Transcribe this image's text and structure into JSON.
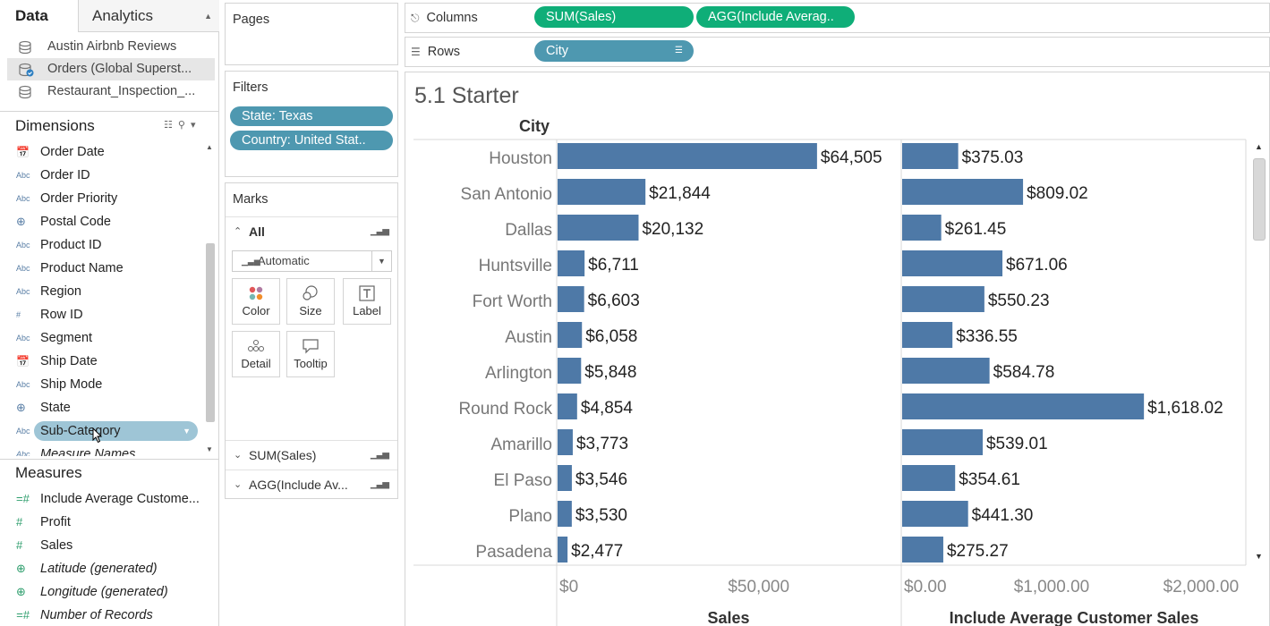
{
  "tabs": {
    "data": "Data",
    "analytics": "Analytics"
  },
  "datasources": [
    {
      "name": "Austin Airbnb Reviews",
      "icon": "datasource-icon"
    },
    {
      "name": "Orders (Global Superst...",
      "icon": "datasource-active-icon"
    },
    {
      "name": "Restaurant_Inspection_...",
      "icon": "datasource-icon"
    }
  ],
  "dimensions": {
    "header": "Dimensions",
    "fields": [
      {
        "name": "Order Date",
        "type": "date"
      },
      {
        "name": "Order ID",
        "type": "Abc"
      },
      {
        "name": "Order Priority",
        "type": "Abc"
      },
      {
        "name": "Postal Code",
        "type": "geo"
      },
      {
        "name": "Product ID",
        "type": "Abc"
      },
      {
        "name": "Product Name",
        "type": "Abc"
      },
      {
        "name": "Region",
        "type": "Abc"
      },
      {
        "name": "Row ID",
        "type": "#"
      },
      {
        "name": "Segment",
        "type": "Abc"
      },
      {
        "name": "Ship Date",
        "type": "date"
      },
      {
        "name": "Ship Mode",
        "type": "Abc"
      },
      {
        "name": "State",
        "type": "geo"
      },
      {
        "name": "Sub-Category",
        "type": "Abc"
      },
      {
        "name": "Measure Names",
        "type": "Abc"
      }
    ]
  },
  "measures": {
    "header": "Measures",
    "fields": [
      {
        "name": "Include Average Custome...",
        "type": "=#"
      },
      {
        "name": "Profit",
        "type": "#"
      },
      {
        "name": "Sales",
        "type": "#"
      },
      {
        "name": "Latitude (generated)",
        "type": "geo"
      },
      {
        "name": "Longitude (generated)",
        "type": "geo"
      },
      {
        "name": "Number of Records",
        "type": "=#"
      }
    ]
  },
  "pages": {
    "title": "Pages"
  },
  "filters": {
    "title": "Filters",
    "items": [
      "State: Texas",
      "Country: United Stat.."
    ]
  },
  "marks": {
    "title": "Marks",
    "all_label": "All",
    "mark_type": "Automatic",
    "buttons": [
      "Color",
      "Size",
      "Label",
      "Detail",
      "Tooltip"
    ],
    "measures": [
      "SUM(Sales)",
      "AGG(Include Av..."
    ]
  },
  "columns_shelf": {
    "label": "Columns",
    "pills": [
      "SUM(Sales)",
      "AGG(Include Averag.."
    ]
  },
  "rows_shelf": {
    "label": "Rows",
    "pills": [
      "City"
    ]
  },
  "view": {
    "title": "5.1 Starter",
    "row_header": "City"
  },
  "colors": {
    "bar": "#4e79a7",
    "green_pill": "#0fae78",
    "blue_pill": "#4e98b0"
  },
  "chart_data": {
    "type": "bar",
    "orientation": "horizontal",
    "categories": [
      "Houston",
      "San Antonio",
      "Dallas",
      "Huntsville",
      "Fort Worth",
      "Austin",
      "Arlington",
      "Round Rock",
      "Amarillo",
      "El Paso",
      "Plano",
      "Pasadena"
    ],
    "panes": [
      {
        "xlabel": "Sales",
        "values": [
          64505,
          21844,
          20132,
          6711,
          6603,
          6058,
          5848,
          4854,
          3773,
          3546,
          3530,
          2477
        ],
        "labels": [
          "$64,505",
          "$21,844",
          "$20,132",
          "$6,711",
          "$6,603",
          "$6,058",
          "$5,848",
          "$4,854",
          "$3,773",
          "$3,546",
          "$3,530",
          "$2,477"
        ],
        "xlim": [
          0,
          85000
        ],
        "ticks": [
          0,
          50000
        ],
        "tick_labels": [
          "$0",
          "$50,000"
        ]
      },
      {
        "xlabel": "Include Average Customer Sales",
        "values": [
          375.03,
          809.02,
          261.45,
          671.06,
          550.23,
          336.55,
          584.78,
          1618.02,
          539.01,
          354.61,
          441.3,
          275.27
        ],
        "labels": [
          "$375.03",
          "$809.02",
          "$261.45",
          "$671.06",
          "$550.23",
          "$336.55",
          "$584.78",
          "$1,618.02",
          "$539.01",
          "$354.61",
          "$441.30",
          "$275.27"
        ],
        "xlim": [
          0,
          2300
        ],
        "ticks": [
          0,
          1000,
          2000
        ],
        "tick_labels": [
          "$0.00",
          "$1,000.00",
          "$2,000.00"
        ]
      }
    ]
  }
}
